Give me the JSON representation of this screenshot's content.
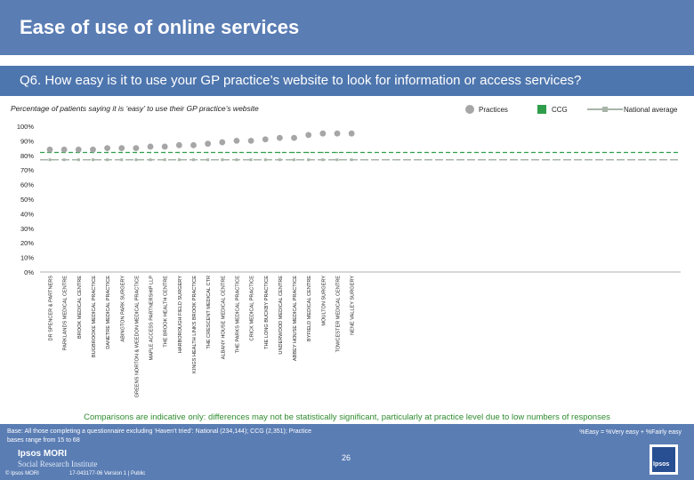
{
  "page": {
    "title": "Ease of use of online services",
    "question": "Q6. How easy is it to use your GP practice’s website to look for information or access services?",
    "subtitle": "Percentage of patients saying it is ‘easy’ to use their GP practice’s website",
    "note": "Comparisons are indicative only: differences may not be statistically significant, particularly at practice level due to low numbers of responses",
    "base": "Base: All those completing a questionnaire excluding ‘Haven’t tried’: National (234,144); CCG (2,351); Practice bases range from 15 to 68",
    "formula": "%Easy = %Very easy + %Fairly easy",
    "page_number": "26",
    "logo_line1": "Ipsos MORI",
    "logo_line2": "Social Research Institute",
    "copyright": "© Ipsos MORI",
    "reference": "17-043177-06 Version 1 | Public",
    "logo_box_text": "Ipsos"
  },
  "legend": {
    "practices": "Practices",
    "ccg": "CCG",
    "national": "National average"
  },
  "colors": {
    "header": "#5a7db4",
    "practice_marker": "#a6a6a6",
    "ccg": "#2e9e4a",
    "national": "#a8b4a8",
    "note": "#2e8b2e"
  },
  "chart_data": {
    "type": "scatter",
    "title": "Percentage of patients saying it is ‘easy’ to use their GP practice’s website",
    "xlabel": "",
    "ylabel": "",
    "ylim": [
      0,
      100
    ],
    "y_ticks": [
      "0%",
      "10%",
      "20%",
      "30%",
      "40%",
      "50%",
      "60%",
      "70%",
      "80%",
      "90%",
      "100%"
    ],
    "categories": [
      "DR SPENCER & PARTNERS",
      "PARKLANDS MEDICAL CENTRE",
      "BROOK MEDICAL CENTRE",
      "BUGBROOKE MEDICAL PRACTICE",
      "DANETRE MEDICAL PRACTICE",
      "ABINGTON PARK SURGERY",
      "GREENS NORTON & WEEDON MEDICAL PRACTICE",
      "MAPLE ACCESS PARTNERSHIP LLP",
      "THE BROOK HEALTH CENTRE",
      "HARBOROUGH FIELD SURGERY",
      "KINGS HEALTH LINKS BROOK PRACTICE",
      "THE CRESCENT MEDICAL CTR",
      "ALBANY HOUSE MEDICAL CENTRE",
      "THE PARKS MEDICAL PRACTICE",
      "CRICK MEDICAL PRACTICE",
      "THE LONG BUCKBY PRACTICE",
      "UNDERWOOD MEDICAL CENTRE",
      "ABBEY HOUSE MEDICAL PRACTICE",
      "BYFIELD MEDICAL CENTRE",
      "MOULTON SURGERY",
      "TOWCESTER MEDICAL CENTRE",
      "NENE VALLEY SURGERY"
    ],
    "series": [
      {
        "name": "Practices",
        "values": [
          84,
          84,
          84,
          84,
          85,
          85,
          85,
          86,
          86,
          87,
          87,
          88,
          89,
          90,
          90,
          91,
          92,
          92,
          94,
          95,
          95,
          95
        ]
      },
      {
        "name": "CCG",
        "values": [
          82,
          82,
          82,
          82,
          82,
          82,
          82,
          82,
          82,
          82,
          82,
          82,
          82,
          82,
          82,
          82,
          82,
          82,
          82,
          82,
          82,
          82
        ]
      },
      {
        "name": "National average",
        "values": [
          77,
          77,
          77,
          77,
          77,
          77,
          77,
          77,
          77,
          77,
          77,
          77,
          77,
          77,
          77,
          77,
          77,
          77,
          77,
          77,
          77,
          77
        ]
      }
    ]
  }
}
